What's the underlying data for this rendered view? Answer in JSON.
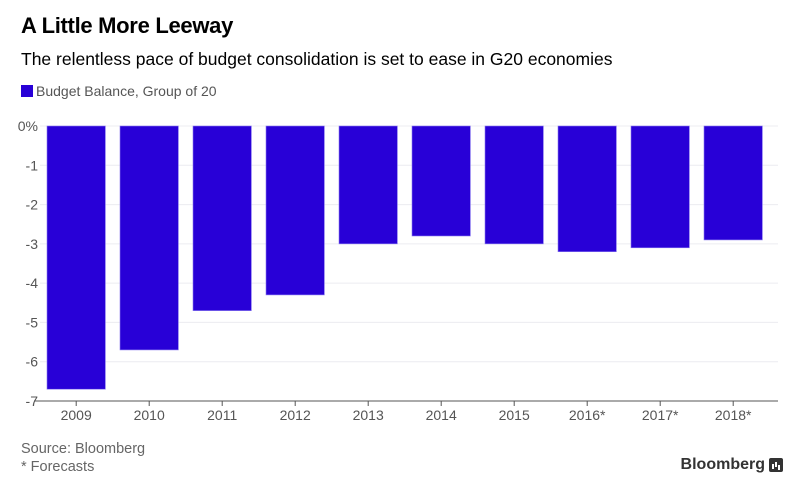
{
  "header": {
    "title": "A Little More Leeway",
    "subtitle": "The relentless pace of budget consolidation is set to ease in G20 economies"
  },
  "footer": {
    "source": "Source: Bloomberg",
    "note": "* Forecasts",
    "brand": "Bloomberg"
  },
  "chart_data": {
    "type": "bar",
    "title": "A Little More Leeway",
    "subtitle": "The relentless pace of budget consolidation is set to ease in G20 economies",
    "xlabel": "",
    "ylabel": "",
    "categories": [
      "2009",
      "2010",
      "2011",
      "2012",
      "2013",
      "2014",
      "2015",
      "2016*",
      "2017*",
      "2018*"
    ],
    "series": [
      {
        "name": "Budget Balance, Group of 20",
        "color": "#2800d7",
        "values": [
          -6.7,
          -5.7,
          -4.7,
          -4.3,
          -3.0,
          -2.8,
          -3.0,
          -3.2,
          -3.1,
          -2.9
        ]
      }
    ],
    "ylim": [
      -7,
      0
    ],
    "yticks": [
      0,
      -1,
      -2,
      -3,
      -4,
      -5,
      -6,
      -7
    ],
    "ytick_labels": [
      "0%",
      "-1",
      "-2",
      "-3",
      "-4",
      "-5",
      "-6",
      "-7"
    ],
    "grid": true,
    "legend": "top-left"
  }
}
